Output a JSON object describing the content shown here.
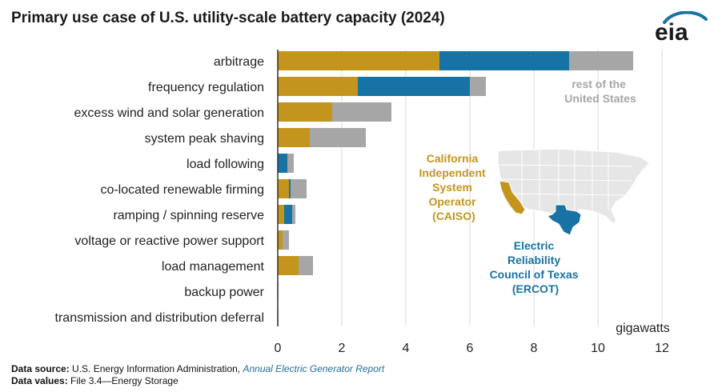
{
  "title": "Primary use case of U.S. utility-scale battery capacity (2024)",
  "logo_text": "eia",
  "colors": {
    "caiso": "#c4951c",
    "ercot": "#1673a3",
    "rest": "#a6a6a6",
    "grid": "#d9d9d9",
    "axis": "#333333",
    "map_fill": "#e6e6e6",
    "map_border": "#ffffff"
  },
  "annotations": {
    "rest": [
      "rest of the",
      "United States"
    ],
    "caiso": [
      "California",
      "Independent",
      "System",
      "Operator",
      "(CAISO)"
    ],
    "ercot": [
      "Electric",
      "Reliability",
      "Council of Texas",
      "(ERCOT)"
    ],
    "unit": "gigawatts"
  },
  "footer": {
    "source_label": "Data source:",
    "source_text": "U.S. Energy Information Administration,",
    "source_link": "Annual Electric Generator Report",
    "values_label": "Data values:",
    "values_text": "File 3.4—Energy Storage"
  },
  "chart_data": {
    "type": "bar",
    "orientation": "horizontal",
    "stacked": true,
    "title": "Primary use case of U.S. utility-scale battery capacity (2024)",
    "xlabel": "gigawatts",
    "xlim": [
      0,
      12
    ],
    "xticks": [
      0,
      2,
      4,
      6,
      8,
      10,
      12
    ],
    "grid": true,
    "categories": [
      "arbitrage",
      "frequency regulation",
      "excess wind and solar generation",
      "system peak shaving",
      "load following",
      "co-located renewable firming",
      "ramping / spinning reserve",
      "voltage or reactive power support",
      "load management",
      "backup power",
      "transmission and distribution deferral"
    ],
    "series": [
      {
        "name": "California Independent System Operator (CAISO)",
        "color": "#c4951c",
        "values": [
          5.05,
          2.5,
          1.7,
          1.0,
          0.0,
          0.35,
          0.2,
          0.15,
          0.65,
          0.0,
          0.0
        ]
      },
      {
        "name": "Electric Reliability Council of Texas (ERCOT)",
        "color": "#1673a3",
        "values": [
          4.05,
          3.5,
          0.0,
          0.0,
          0.3,
          0.05,
          0.25,
          0.0,
          0.0,
          0.0,
          0.0
        ]
      },
      {
        "name": "rest of the United States",
        "color": "#a6a6a6",
        "values": [
          2.0,
          0.5,
          1.85,
          1.75,
          0.2,
          0.5,
          0.1,
          0.2,
          0.45,
          0.02,
          0.02
        ]
      }
    ]
  }
}
